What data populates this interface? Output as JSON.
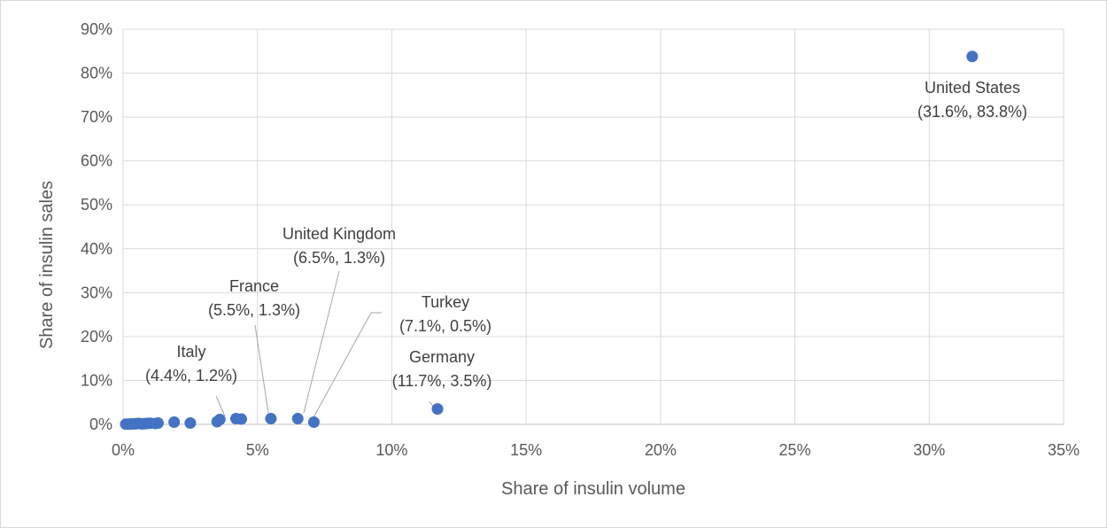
{
  "chart_data": {
    "type": "scatter",
    "title": "",
    "xlabel": "Share of insulin volume",
    "ylabel": "Share of insulin sales",
    "xlim": [
      0,
      35
    ],
    "ylim": [
      0,
      90
    ],
    "x_ticks": [
      0,
      5,
      10,
      15,
      20,
      25,
      30,
      35
    ],
    "x_tick_labels": [
      "0%",
      "5%",
      "10%",
      "15%",
      "20%",
      "25%",
      "30%",
      "35%"
    ],
    "y_ticks": [
      0,
      10,
      20,
      30,
      40,
      50,
      60,
      70,
      80,
      90
    ],
    "y_tick_labels": [
      "0%",
      "10%",
      "20%",
      "30%",
      "40%",
      "50%",
      "60%",
      "70%",
      "80%",
      "90%"
    ],
    "grid": true,
    "legend": "none",
    "series": [
      {
        "color": "#4472c4",
        "points": [
          {
            "x": 0.1,
            "y": 0.05
          },
          {
            "x": 0.2,
            "y": 0.05
          },
          {
            "x": 0.3,
            "y": 0.1
          },
          {
            "x": 0.4,
            "y": 0.1
          },
          {
            "x": 0.5,
            "y": 0.15
          },
          {
            "x": 0.6,
            "y": 0.2
          },
          {
            "x": 0.7,
            "y": 0.1
          },
          {
            "x": 0.8,
            "y": 0.15
          },
          {
            "x": 0.9,
            "y": 0.2
          },
          {
            "x": 1.0,
            "y": 0.25
          },
          {
            "x": 1.2,
            "y": 0.2
          },
          {
            "x": 1.3,
            "y": 0.3
          },
          {
            "x": 1.9,
            "y": 0.5
          },
          {
            "x": 2.5,
            "y": 0.3
          },
          {
            "x": 3.5,
            "y": 0.6
          },
          {
            "x": 3.6,
            "y": 1.1
          },
          {
            "x": 4.2,
            "y": 1.3
          },
          {
            "x": 4.4,
            "y": 1.2
          },
          {
            "x": 5.5,
            "y": 1.3
          },
          {
            "x": 6.5,
            "y": 1.3
          },
          {
            "x": 7.1,
            "y": 0.5
          },
          {
            "x": 11.7,
            "y": 3.5
          },
          {
            "x": 31.6,
            "y": 83.8
          }
        ]
      }
    ],
    "annotations": [
      {
        "name": "Italy",
        "coords": "(4.4%, 1.2%)",
        "x": 4.4,
        "y": 1.2
      },
      {
        "name": "France",
        "coords": "(5.5%, 1.3%)",
        "x": 5.5,
        "y": 1.3
      },
      {
        "name": "United Kingdom",
        "coords": "(6.5%, 1.3%)",
        "x": 6.5,
        "y": 1.3
      },
      {
        "name": "Turkey",
        "coords": "(7.1%, 0.5%)",
        "x": 7.1,
        "y": 0.5
      },
      {
        "name": "Germany",
        "coords": "(11.7%, 3.5%)",
        "x": 11.7,
        "y": 3.5
      },
      {
        "name": "United States",
        "coords": "(31.6%, 83.8%)",
        "x": 31.6,
        "y": 83.8
      }
    ]
  }
}
